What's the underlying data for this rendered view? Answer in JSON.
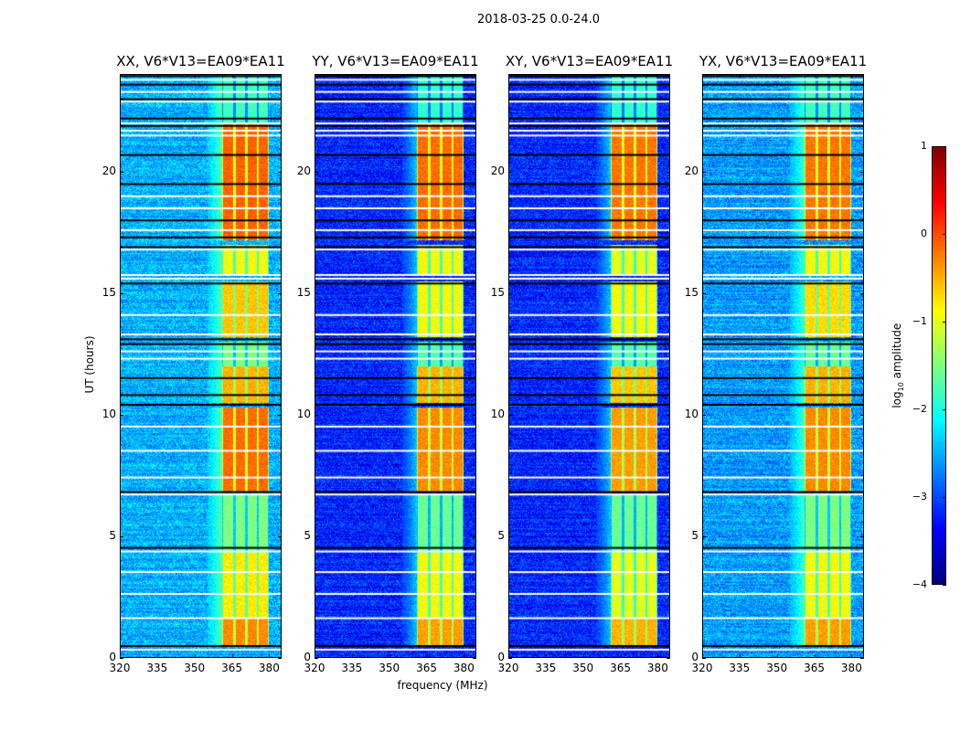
{
  "chart_data": {
    "type": "heatmap",
    "title": "2018-03-25 0.0-24.0",
    "xlabel": "frequency (MHz)",
    "ylabel": "UT (hours)",
    "xlim": [
      320,
      385
    ],
    "ylim": [
      0,
      24
    ],
    "xticks": [
      320,
      335,
      350,
      365,
      380
    ],
    "xtick_labels": [
      "320",
      "335",
      "350",
      "365",
      "380"
    ],
    "yticks": [
      0,
      5,
      10,
      15,
      20
    ],
    "ytick_labels": [
      "0",
      "5",
      "10",
      "15",
      "20"
    ],
    "colormap": "jet",
    "colorbar": {
      "label_prefix": "log",
      "label_sub": "10",
      "label_suffix": " amplitude",
      "range": [
        -4,
        1
      ],
      "ticks": [
        -4,
        -3,
        -2,
        -1,
        0,
        1
      ],
      "tick_labels": [
        "−4",
        "−3",
        "−2",
        "−1",
        "0",
        "1"
      ]
    },
    "rfi_subbands_mhz": [
      [
        361,
        366
      ],
      [
        366,
        371
      ],
      [
        371,
        375.5
      ],
      [
        375.5,
        380
      ]
    ],
    "flagged_times_black": [
      0.45,
      4.5,
      6.8,
      10.4,
      10.8,
      11.5,
      12.9,
      13.1,
      15.4,
      16.9,
      17.3,
      18.0,
      19.5,
      20.7,
      21.9,
      22.2,
      23.0,
      23.6,
      23.95
    ],
    "flagged_times_white": [
      0.3,
      1.6,
      2.6,
      3.5,
      4.35,
      6.7,
      7.4,
      8.5,
      9.5,
      12.3,
      12.6,
      13.3,
      14.1,
      15.6,
      15.75,
      16.8,
      17.6,
      18.5,
      19.0,
      21.5,
      21.7,
      22.0,
      22.9,
      23.3,
      23.8
    ],
    "panels": [
      {
        "title": "XX, V6*V13=EA09*EA11",
        "background_level": -2.5,
        "band_intervals": [
          [
            0.5,
            1.6,
            -0.3
          ],
          [
            1.6,
            4.3,
            -0.8
          ],
          [
            4.3,
            6.7,
            -1.5
          ],
          [
            6.8,
            10.3,
            -0.15
          ],
          [
            10.5,
            12.0,
            -0.5
          ],
          [
            12.0,
            13.0,
            -1.5
          ],
          [
            13.2,
            15.5,
            -0.6
          ],
          [
            15.8,
            17.0,
            -0.9
          ],
          [
            17.2,
            22.0,
            -0.1
          ],
          [
            22.0,
            24.0,
            -1.8
          ]
        ]
      },
      {
        "title": "YY, V6*V13=EA09*EA11",
        "background_level": -3.2,
        "band_intervals": [
          [
            0.5,
            1.6,
            -0.4
          ],
          [
            1.6,
            4.3,
            -0.9
          ],
          [
            4.3,
            6.7,
            -1.6
          ],
          [
            6.8,
            10.3,
            -0.3
          ],
          [
            10.5,
            12.0,
            -0.5
          ],
          [
            12.0,
            13.0,
            -1.7
          ],
          [
            13.2,
            15.5,
            -0.9
          ],
          [
            15.8,
            17.0,
            -0.9
          ],
          [
            17.2,
            22.0,
            -0.15
          ],
          [
            22.0,
            24.0,
            -1.9
          ]
        ]
      },
      {
        "title": "XY, V6*V13=EA09*EA11",
        "background_level": -3.2,
        "band_intervals": [
          [
            0.5,
            1.6,
            -0.5
          ],
          [
            1.6,
            4.3,
            -1.0
          ],
          [
            4.3,
            6.7,
            -1.6
          ],
          [
            6.8,
            10.3,
            -0.4
          ],
          [
            10.5,
            12.0,
            -0.6
          ],
          [
            12.0,
            13.0,
            -1.7
          ],
          [
            13.2,
            15.5,
            -0.9
          ],
          [
            15.8,
            17.0,
            -1.0
          ],
          [
            17.2,
            22.0,
            -0.2
          ],
          [
            22.0,
            24.0,
            -1.9
          ]
        ]
      },
      {
        "title": "YX, V6*V13=EA09*EA11",
        "background_level": -2.6,
        "band_intervals": [
          [
            0.5,
            1.6,
            -0.4
          ],
          [
            1.6,
            4.3,
            -0.9
          ],
          [
            4.3,
            6.7,
            -1.5
          ],
          [
            6.8,
            10.3,
            -0.3
          ],
          [
            10.5,
            12.0,
            -0.5
          ],
          [
            12.0,
            13.0,
            -1.6
          ],
          [
            13.2,
            15.5,
            -0.7
          ],
          [
            15.8,
            17.0,
            -0.9
          ],
          [
            17.2,
            22.0,
            -0.2
          ],
          [
            22.0,
            24.0,
            -1.8
          ]
        ]
      }
    ]
  }
}
